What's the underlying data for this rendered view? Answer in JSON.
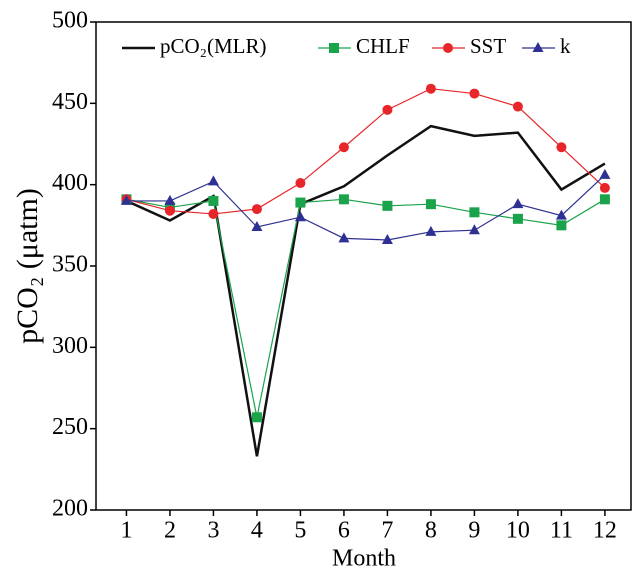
{
  "chart_data": {
    "type": "line",
    "x_label": "Month",
    "y_label": "pCO₂ (μatm)",
    "x": [
      1,
      2,
      3,
      4,
      5,
      6,
      7,
      8,
      9,
      10,
      11,
      12
    ],
    "xlim": [
      0.3,
      12.6
    ],
    "xticks": [
      1,
      2,
      3,
      4,
      5,
      6,
      7,
      8,
      9,
      10,
      11,
      12
    ],
    "ylim": [
      200,
      500
    ],
    "yticks": [
      200,
      250,
      300,
      350,
      400,
      450,
      500
    ],
    "legend": "top",
    "series": [
      {
        "name": "pCO₂(MLR)",
        "color": "#111111",
        "marker": "none",
        "values": [
          390,
          378,
          393,
          233,
          388,
          399,
          418,
          436,
          430,
          432,
          397,
          413
        ]
      },
      {
        "name": "CHLF",
        "color": "#1aa34a",
        "marker": "square",
        "values": [
          391,
          386,
          390,
          257,
          389,
          391,
          387,
          388,
          383,
          379,
          375,
          391
        ]
      },
      {
        "name": "SST",
        "color": "#e8262a",
        "marker": "circle",
        "values": [
          391,
          384,
          382,
          385,
          401,
          423,
          446,
          459,
          456,
          448,
          423,
          398
        ]
      },
      {
        "name": "k",
        "color": "#2e3192",
        "marker": "triangle",
        "values": [
          390,
          390,
          402,
          374,
          380,
          367,
          366,
          371,
          372,
          388,
          381,
          406
        ]
      }
    ]
  }
}
